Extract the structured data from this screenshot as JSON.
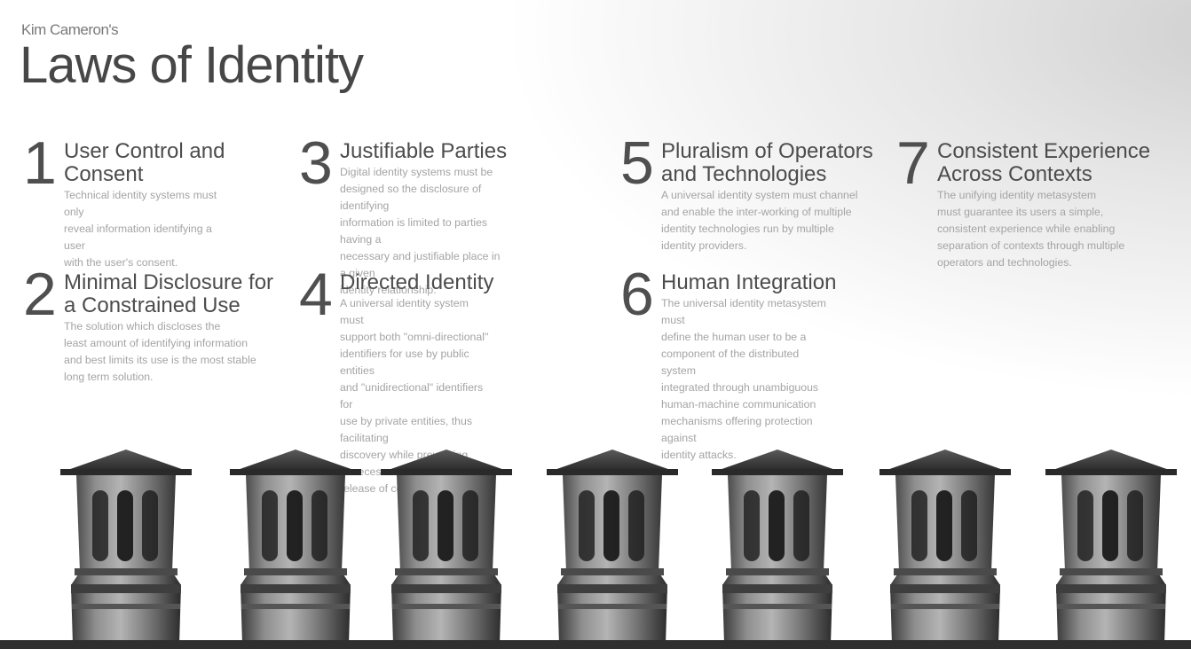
{
  "header": {
    "author": "Kim Cameron's",
    "title": "Laws of Identity"
  },
  "laws": [
    {
      "number": "1",
      "title_lines": [
        "User Control and",
        "Consent"
      ],
      "desc_lines": [
        "Technical identity systems must only",
        "reveal information identifying a user",
        "with the user's consent."
      ]
    },
    {
      "number": "2",
      "title_lines": [
        "Minimal Disclosure for",
        "a Constrained Use"
      ],
      "desc_lines": [
        "The solution which discloses the",
        "least amount of identifying information",
        "and best limits its use is the most stable",
        "long term solution."
      ]
    },
    {
      "number": "3",
      "title_lines": [
        "Justifiable Parties"
      ],
      "desc_lines": [
        "Digital identity systems must be",
        "designed so the disclosure of identifying",
        "information is limited to parties having a",
        "necessary and justifiable place in a given",
        "identity relationship."
      ]
    },
    {
      "number": "4",
      "title_lines": [
        "Directed Identity"
      ],
      "desc_lines": [
        "A universal identity system must",
        "support both \"omni-directional\"",
        "identifiers for use by public entities",
        "and \"unidirectional\" identifiers for",
        "use by private entities, thus facilitating",
        "discovery while preventing unnecessary",
        "release of correlation handles."
      ]
    },
    {
      "number": "5",
      "title_lines": [
        "Pluralism of Operators",
        "and Technologies"
      ],
      "desc_lines": [
        "A universal identity system must channel",
        "and enable the inter-working of multiple",
        "identity technologies run by multiple",
        "identity providers."
      ]
    },
    {
      "number": "6",
      "title_lines": [
        "Human Integration"
      ],
      "desc_lines": [
        "The universal identity metasystem must",
        "define the human user to be a",
        "component of the distributed system",
        "integrated through unambiguous",
        "human-machine communication",
        "mechanisms offering protection against",
        "identity attacks."
      ]
    },
    {
      "number": "7",
      "title_lines": [
        "Consistent Experience",
        "Across Contexts"
      ],
      "desc_lines": [
        "The unifying identity metasystem",
        "must guarantee its users a simple,",
        "consistent experience while enabling",
        "separation of contexts through multiple",
        "operators and technologies."
      ]
    }
  ],
  "illustration": {
    "subject": "chimney-pots",
    "count": 7,
    "colors": {
      "metal": "#6e6e6e",
      "metal_light": "#a9a9a9",
      "metal_dark": "#2e2e2e",
      "roof": "#3a3a3a"
    }
  }
}
